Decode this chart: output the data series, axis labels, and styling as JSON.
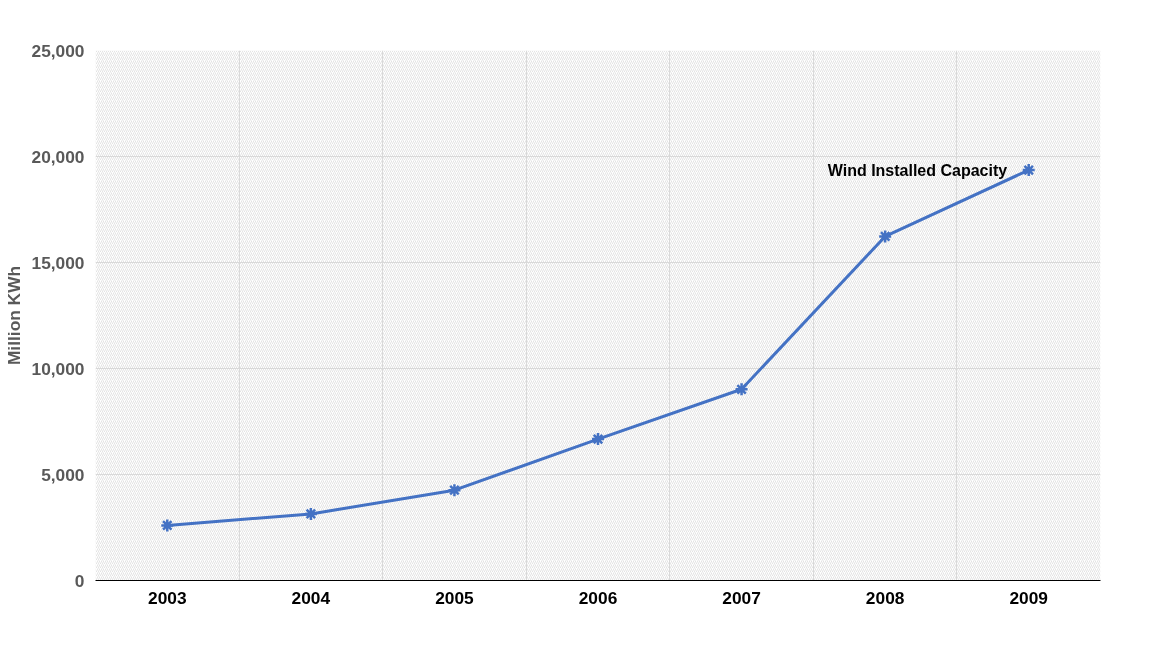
{
  "chart_data": {
    "type": "line",
    "ylabel": "Million KWh",
    "categories": [
      "2003",
      "2004",
      "2005",
      "2006",
      "2007",
      "2008",
      "2009"
    ],
    "series": [
      {
        "name": "Wind Installed Capacity",
        "color": "#4472c4",
        "values": [
          2600,
          3140,
          4260,
          6670,
          9020,
          16230,
          19360
        ]
      }
    ],
    "ylim": [
      0,
      25000
    ],
    "yticks": [
      {
        "value": 0,
        "label": "0"
      },
      {
        "value": 5000,
        "label": "5,000"
      },
      {
        "value": 10000,
        "label": "10,000"
      },
      {
        "value": 15000,
        "label": "15,000"
      },
      {
        "value": 20000,
        "label": "20,000"
      },
      {
        "value": 25000,
        "label": "25,000"
      }
    ],
    "grid": true,
    "legend": false,
    "marker": "cross",
    "line_style": "solid"
  }
}
